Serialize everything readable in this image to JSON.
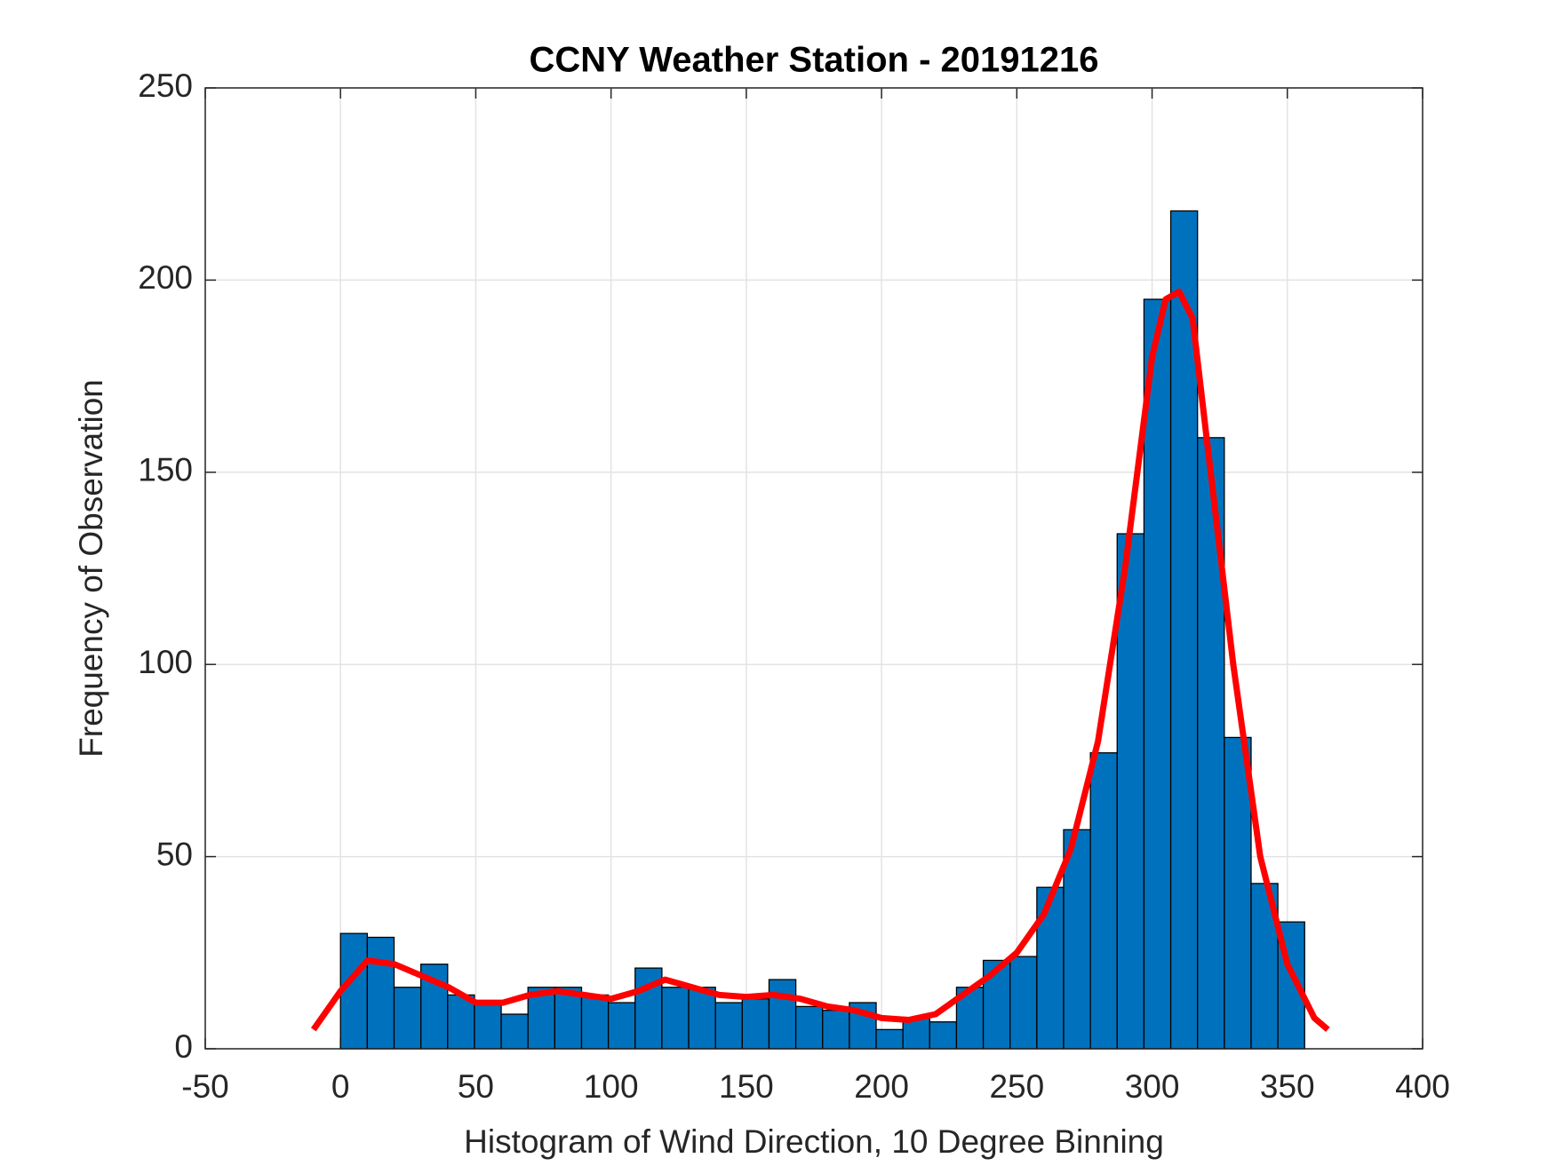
{
  "chart_data": {
    "type": "histogram",
    "title": "CCNY Weather Station - 20191216",
    "xlabel": "Histogram of Wind Direction, 10 Degree Binning",
    "ylabel": "Frequency of Observation",
    "bins": [
      0,
      9.9,
      19.8,
      29.7,
      39.6,
      49.5,
      59.4,
      69.3,
      79.2,
      89.1,
      99,
      108.9,
      118.8,
      128.7,
      138.6,
      148.5,
      158.4,
      168.3,
      178.2,
      188.1,
      198,
      207.9,
      217.8,
      227.7,
      237.6,
      247.5,
      257.4,
      267.3,
      277.2,
      287.1,
      297,
      306.9,
      316.8,
      326.7,
      336.6,
      346.5,
      356.4
    ],
    "counts": [
      30,
      29,
      16,
      22,
      14,
      12,
      9,
      16,
      16,
      14,
      12,
      21,
      16,
      16,
      12,
      13,
      18,
      11,
      10,
      12,
      5,
      8,
      7,
      16,
      23,
      24,
      42,
      57,
      77,
      134,
      195,
      218,
      159,
      81,
      43,
      33
    ],
    "color": "#0072bd",
    "curve": {
      "color": "#ff0000",
      "x": [
        -10,
        0,
        10,
        20,
        30,
        40,
        50,
        60,
        70,
        80,
        90,
        100,
        110,
        120,
        130,
        140,
        150,
        160,
        170,
        180,
        190,
        200,
        210,
        220,
        230,
        240,
        250,
        260,
        270,
        280,
        290,
        300,
        305,
        310,
        315,
        320,
        330,
        340,
        350,
        360,
        365
      ],
      "y": [
        5,
        15,
        23,
        22,
        19,
        16,
        12,
        12,
        14,
        15,
        14,
        13,
        15,
        18,
        16,
        14,
        13.5,
        14,
        13,
        11,
        10,
        8,
        7.5,
        9,
        14,
        19,
        25,
        35,
        52,
        80,
        125,
        180,
        195,
        197,
        190,
        160,
        100,
        50,
        22,
        8,
        5
      ]
    },
    "xlim": [
      -50,
      400
    ],
    "ylim": [
      0,
      250
    ],
    "xticks": [
      -50,
      0,
      50,
      100,
      150,
      200,
      250,
      300,
      350,
      400
    ],
    "yticks": [
      0,
      50,
      100,
      150,
      200,
      250
    ],
    "grid": true
  }
}
